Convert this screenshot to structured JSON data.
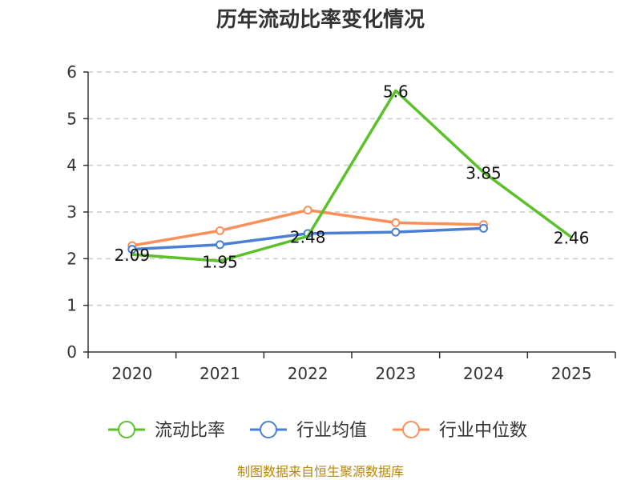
{
  "chart_data": {
    "type": "line",
    "title": "历年流动比率变化情况",
    "categories": [
      "2020",
      "2021",
      "2022",
      "2023",
      "2024",
      "2025"
    ],
    "ylim": [
      0,
      6
    ],
    "yticks": [
      "0",
      "1",
      "2",
      "3",
      "4",
      "5",
      "6"
    ],
    "grid": true,
    "legend": "bottom",
    "series": [
      {
        "name": "流动比率",
        "values": [
          2.09,
          1.95,
          2.48,
          5.6,
          3.85,
          2.46
        ],
        "labels": [
          "2.09",
          "1.95",
          "2.48",
          "5.6",
          "3.85",
          "2.46"
        ],
        "color": "#5cc02a",
        "markers": false
      },
      {
        "name": "行业均值",
        "values": [
          2.2,
          2.3,
          2.54,
          2.57,
          2.65,
          null
        ],
        "color": "#4a7fd6",
        "markers": true
      },
      {
        "name": "行业中位数",
        "values": [
          2.28,
          2.6,
          3.04,
          2.77,
          2.73,
          null
        ],
        "color": "#fa8f5a",
        "markers": true
      }
    ],
    "source": "制图数据来自恒生聚源数据库"
  }
}
